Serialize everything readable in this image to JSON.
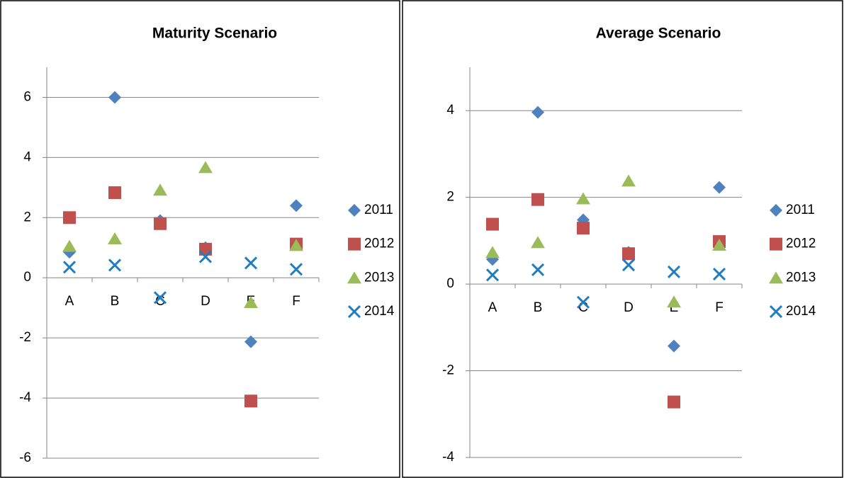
{
  "chart_data": [
    {
      "type": "scatter",
      "title": "Maturity Scenario",
      "categories": [
        "A",
        "B",
        "C",
        "D",
        "E",
        "F"
      ],
      "ylim": [
        -6,
        7
      ],
      "yticks": [
        -6,
        -4,
        -2,
        0,
        2,
        4,
        6
      ],
      "grid": true,
      "legend": "right",
      "series": [
        {
          "name": "2011",
          "color": "#4f81bd",
          "marker": "diamond",
          "values": [
            0.85,
            6.0,
            1.9,
            1.0,
            -2.13,
            2.4
          ]
        },
        {
          "name": "2012",
          "color": "#c0504d",
          "marker": "square",
          "values": [
            2.0,
            2.83,
            1.8,
            0.95,
            -4.1,
            1.12
          ]
        },
        {
          "name": "2013",
          "color": "#9bbb59",
          "marker": "triangle",
          "values": [
            1.05,
            1.3,
            2.92,
            3.67,
            -0.82,
            1.08
          ]
        },
        {
          "name": "2014",
          "color": "#1f7dc0",
          "marker": "x",
          "values": [
            0.35,
            0.42,
            -0.66,
            0.7,
            0.49,
            0.28
          ]
        }
      ]
    },
    {
      "type": "scatter",
      "title": "Average Scenario",
      "categories": [
        "A",
        "B",
        "C",
        "D",
        "E",
        "F"
      ],
      "ylim": [
        -4,
        5
      ],
      "yticks": [
        -4,
        -2,
        0,
        2,
        4
      ],
      "grid": true,
      "legend": "right",
      "series": [
        {
          "name": "2011",
          "color": "#4f81bd",
          "marker": "diamond",
          "values": [
            0.57,
            3.96,
            1.48,
            0.73,
            -1.43,
            2.23
          ]
        },
        {
          "name": "2012",
          "color": "#c0504d",
          "marker": "square",
          "values": [
            1.38,
            1.95,
            1.29,
            0.7,
            -2.72,
            0.98
          ]
        },
        {
          "name": "2013",
          "color": "#9bbb59",
          "marker": "triangle",
          "values": [
            0.73,
            0.96,
            1.97,
            2.38,
            -0.41,
            0.9
          ]
        },
        {
          "name": "2014",
          "color": "#1f7dc0",
          "marker": "x",
          "values": [
            0.21,
            0.33,
            -0.42,
            0.44,
            0.28,
            0.23
          ]
        }
      ]
    }
  ]
}
